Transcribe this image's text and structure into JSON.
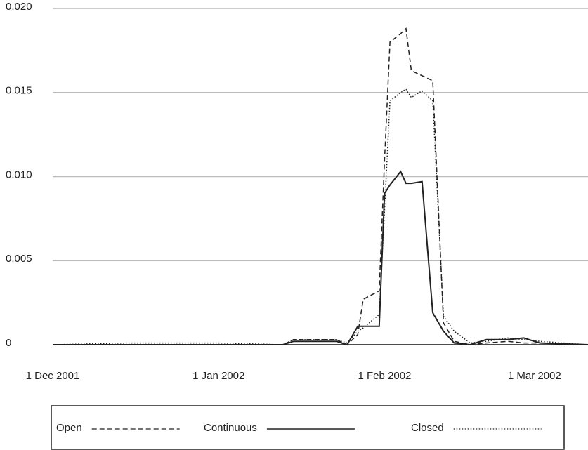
{
  "chart_data": {
    "type": "line",
    "x": [
      "2001-12-01",
      "2001-12-15",
      "2002-01-01",
      "2002-01-13",
      "2002-01-15",
      "2002-01-23",
      "2002-01-25",
      "2002-01-27",
      "2002-01-28",
      "2002-01-31",
      "2002-02-01",
      "2002-02-02",
      "2002-02-04",
      "2002-02-05",
      "2002-02-06",
      "2002-02-08",
      "2002-02-10",
      "2002-02-12",
      "2002-02-14",
      "2002-02-17",
      "2002-02-20",
      "2002-02-24",
      "2002-02-27",
      "2002-03-02",
      "2002-03-11"
    ],
    "series": [
      {
        "name": "Open",
        "color": "#222222",
        "style": "dashed",
        "values": [
          0,
          0,
          0,
          0,
          0.0003,
          0.0003,
          0,
          0.0006,
          0.0027,
          0.0032,
          0.011,
          0.018,
          0.0185,
          0.0188,
          0.0163,
          0.016,
          0.0157,
          0.0013,
          0.0002,
          0,
          0.0001,
          0.0002,
          0.0001,
          0.0001,
          0
        ]
      },
      {
        "name": "Continuous",
        "color": "#222222",
        "style": "solid",
        "values": [
          0,
          0,
          0,
          0,
          0.0002,
          0.0002,
          0,
          0.0011,
          0.0011,
          0.0011,
          0.009,
          0.0095,
          0.0103,
          0.0096,
          0.0096,
          0.0097,
          0.0019,
          0.0008,
          0.0001,
          0,
          0.0003,
          0.0003,
          0.0004,
          0.0001,
          0
        ]
      },
      {
        "name": "Closed",
        "color": "#222222",
        "style": "dotted",
        "values": [
          0,
          0.0001,
          0.0001,
          0,
          0.0003,
          0.0003,
          0.0001,
          0.0008,
          0.001,
          0.0018,
          0.008,
          0.0145,
          0.015,
          0.0152,
          0.0147,
          0.0151,
          0.0145,
          0.0017,
          0.0008,
          0.0001,
          0.0002,
          0.0004,
          0.0003,
          0.0002,
          0
        ]
      }
    ],
    "xlim": [
      "2001-12-01",
      "2002-03-11"
    ],
    "xticks": [
      {
        "value": "2001-12-01",
        "label": "1 Dec 2001"
      },
      {
        "value": "2002-01-01",
        "label": "1 Jan 2002"
      },
      {
        "value": "2002-02-01",
        "label": "1 Feb 2002"
      },
      {
        "value": "2002-03-01",
        "label": "1 Mar 2002"
      }
    ],
    "ylim": [
      0,
      0.0205
    ],
    "yticks": [
      0,
      0.005,
      {
        "value": 0.01,
        "label": "0.010"
      },
      0.015,
      {
        "value": 0.02,
        "label": "0.020"
      }
    ],
    "grid": true,
    "legend": "bottom"
  }
}
